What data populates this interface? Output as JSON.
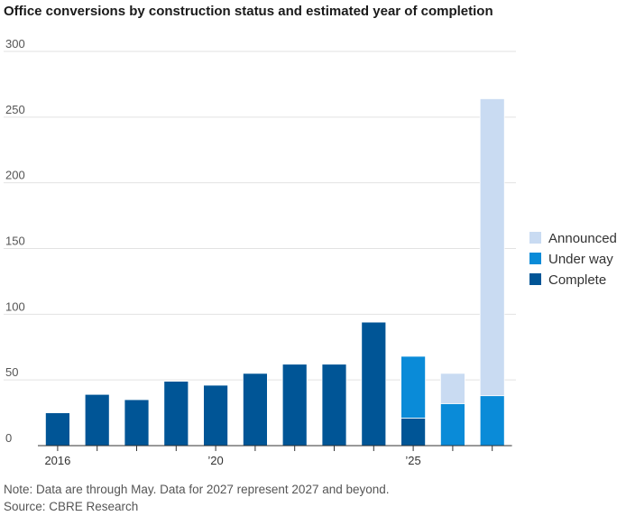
{
  "header": {
    "title": "Office conversions by construction status and estimated year of completion"
  },
  "footer": {
    "note": "Note: Data are through May. Data for 2027 represent 2027 and beyond.",
    "source": "Source: CBRE Research"
  },
  "colors": {
    "complete": "#005596",
    "under_way": "#0a8bd8",
    "announced": "#c9dbf2",
    "grid": "#e2e2e2",
    "axis": "#333333"
  },
  "chart_data": {
    "type": "bar",
    "stacked": true,
    "title": "Office conversions by construction status and estimated year of completion",
    "categories": [
      "2016",
      "2017",
      "2018",
      "2019",
      "2020",
      "2021",
      "2022",
      "2023",
      "2024",
      "2025",
      "2026",
      "2027"
    ],
    "x_tick_labels": [
      {
        "category": "2016",
        "label": "2016"
      },
      {
        "category": "2020",
        "label": "’20"
      },
      {
        "category": "2025",
        "label": "’25"
      }
    ],
    "series": [
      {
        "name": "Complete",
        "color": "#005596",
        "values": [
          25,
          39,
          35,
          49,
          46,
          55,
          62,
          62,
          94,
          21,
          0,
          0
        ]
      },
      {
        "name": "Under way",
        "color": "#0a8bd8",
        "values": [
          0,
          0,
          0,
          0,
          0,
          0,
          0,
          0,
          0,
          47,
          32,
          38
        ]
      },
      {
        "name": "Announced",
        "color": "#c9dbf2",
        "values": [
          0,
          0,
          0,
          0,
          0,
          0,
          0,
          0,
          0,
          0,
          23,
          226
        ]
      }
    ],
    "legend_order": [
      "Announced",
      "Under way",
      "Complete"
    ],
    "legend_position": "right",
    "ylim": [
      0,
      300
    ],
    "yticks": [
      0,
      50,
      100,
      150,
      200,
      250,
      300
    ],
    "grid": true,
    "xlabel": "",
    "ylabel": ""
  }
}
